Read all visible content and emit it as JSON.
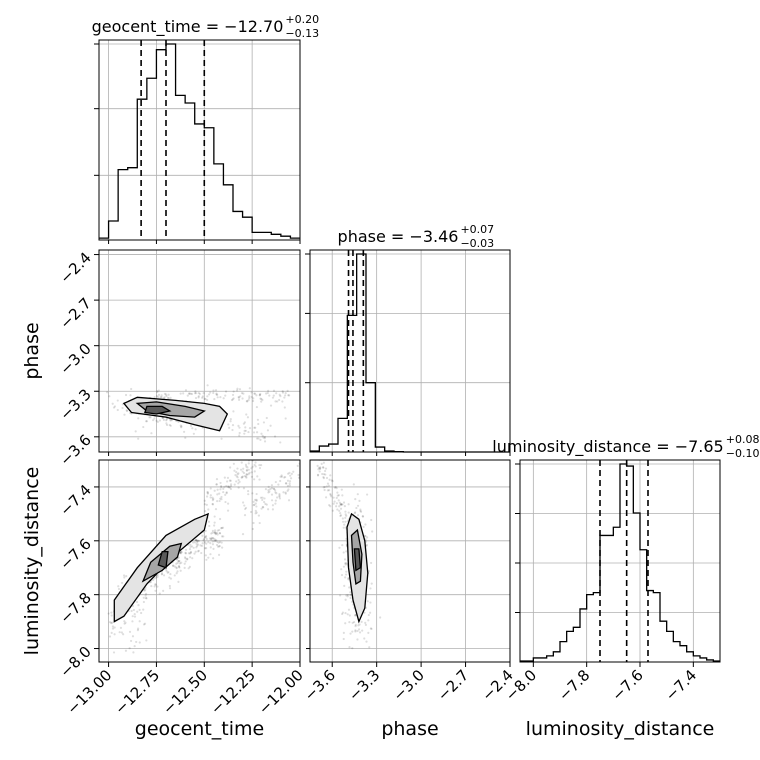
{
  "chart_data": {
    "type": "corner",
    "parameters": [
      {
        "name": "geocent_time",
        "range": [
          -13.05,
          -12.0
        ],
        "ticks": [
          -13.0,
          -12.75,
          -12.5,
          -12.25,
          -12.0
        ],
        "tick_labels": [
          "−13.00",
          "−12.75",
          "−12.50",
          "−12.25",
          "−12.00"
        ],
        "median": -12.7,
        "plus": 0.2,
        "minus": 0.13,
        "title_main": "geocent_time = −12.70",
        "title_plus": "+0.20",
        "title_minus": "−0.13",
        "quantiles": [
          -12.83,
          -12.7,
          -12.5
        ],
        "hist_x": [
          -13.05,
          -13.0,
          -12.95,
          -12.9,
          -12.85,
          -12.8,
          -12.75,
          -12.7,
          -12.65,
          -12.6,
          -12.55,
          -12.5,
          -12.45,
          -12.4,
          -12.35,
          -12.3,
          -12.25,
          -12.2,
          -12.15,
          -12.1,
          -12.05,
          -12.0
        ],
        "hist_counts": [
          0.01,
          0.1,
          0.37,
          0.38,
          0.74,
          0.85,
          1.0,
          1.03,
          0.76,
          0.72,
          0.61,
          0.59,
          0.4,
          0.29,
          0.15,
          0.12,
          0.04,
          0.04,
          0.03,
          0.02,
          0.01
        ],
        "hist_yticks": [
          0.33,
          0.67,
          1.0
        ]
      },
      {
        "name": "phase",
        "range": [
          -3.75,
          -2.4
        ],
        "ticks": [
          -3.6,
          -3.3,
          -3.0,
          -2.7,
          -2.4
        ],
        "tick_labels": [
          "−3.6",
          "−3.3",
          "−3.0",
          "−2.7",
          "−2.4"
        ],
        "median": -3.46,
        "plus": 0.07,
        "minus": 0.03,
        "title_main": "phase = −3.46",
        "title_plus": "+0.07",
        "title_minus": "−0.03",
        "quantiles": [
          -3.49,
          -3.46,
          -3.39
        ],
        "hist_x": [
          -3.75,
          -3.687,
          -3.624,
          -3.561,
          -3.498,
          -3.435,
          -3.372,
          -3.309,
          -3.246,
          -3.183,
          -3.12,
          -2.4
        ],
        "hist_counts": [
          0.005,
          0.03,
          0.04,
          0.17,
          0.69,
          1.0,
          0.35,
          0.025,
          0.005,
          0.002,
          0.0
        ],
        "hist_yticks": [
          0.35,
          0.7,
          1.0
        ]
      },
      {
        "name": "luminosity_distance",
        "range": [
          -8.05,
          -7.3
        ],
        "ticks": [
          -8.0,
          -7.8,
          -7.6,
          -7.4
        ],
        "tick_labels": [
          "−8.0",
          "−7.8",
          "−7.6",
          "−7.4"
        ],
        "median": -7.65,
        "plus": 0.08,
        "minus": 0.1,
        "title_main": "luminosity_distance = −7.65",
        "title_plus": "+0.08",
        "title_minus": "−0.10",
        "quantiles": [
          -7.75,
          -7.65,
          -7.57
        ],
        "hist_x": [
          -8.05,
          -8.0,
          -7.95,
          -7.925,
          -7.9,
          -7.875,
          -7.85,
          -7.825,
          -7.8,
          -7.775,
          -7.75,
          -7.725,
          -7.7,
          -7.675,
          -7.65,
          -7.625,
          -7.6,
          -7.575,
          -7.55,
          -7.525,
          -7.5,
          -7.475,
          -7.45,
          -7.425,
          -7.4,
          -7.375,
          -7.35,
          -7.325,
          -7.3
        ],
        "hist_counts": [
          0.005,
          0.02,
          0.03,
          0.05,
          0.1,
          0.15,
          0.17,
          0.26,
          0.33,
          0.34,
          0.62,
          0.62,
          0.66,
          0.97,
          0.96,
          0.73,
          0.55,
          0.35,
          0.34,
          0.2,
          0.15,
          0.1,
          0.08,
          0.05,
          0.03,
          0.02,
          0.01,
          0.005
        ],
        "hist_yticks": [
          0.25,
          0.5,
          0.75,
          1.0
        ]
      }
    ],
    "axis_labels": {
      "x": [
        "geocent_time",
        "phase",
        "luminosity_distance"
      ],
      "y": [
        "phase",
        "luminosity_distance"
      ]
    },
    "y_tick_labels": {
      "phase": {
        "values": [
          -2.4,
          -2.7,
          -3.0,
          -3.3,
          -3.6
        ],
        "labels": [
          "−2.4",
          "−2.7",
          "−3.0",
          "−3.3",
          "−3.6"
        ]
      },
      "luminosity_distance": {
        "values": [
          -7.4,
          -7.6,
          -7.8,
          -8.0
        ],
        "labels": [
          "−7.4",
          "−7.6",
          "−7.8",
          "−8.0"
        ]
      }
    },
    "phase_range_y": [
      -3.7,
      -2.37
    ],
    "lum_range_y": [
      -8.05,
      -7.3
    ],
    "grid": true,
    "colors": {
      "line": "#000000",
      "scatter": "#000000",
      "grid": "#b0b0b0",
      "fill_outer": "#e4e4e4",
      "fill_mid": "#a6a6a6",
      "fill_inner": "#595959"
    }
  }
}
